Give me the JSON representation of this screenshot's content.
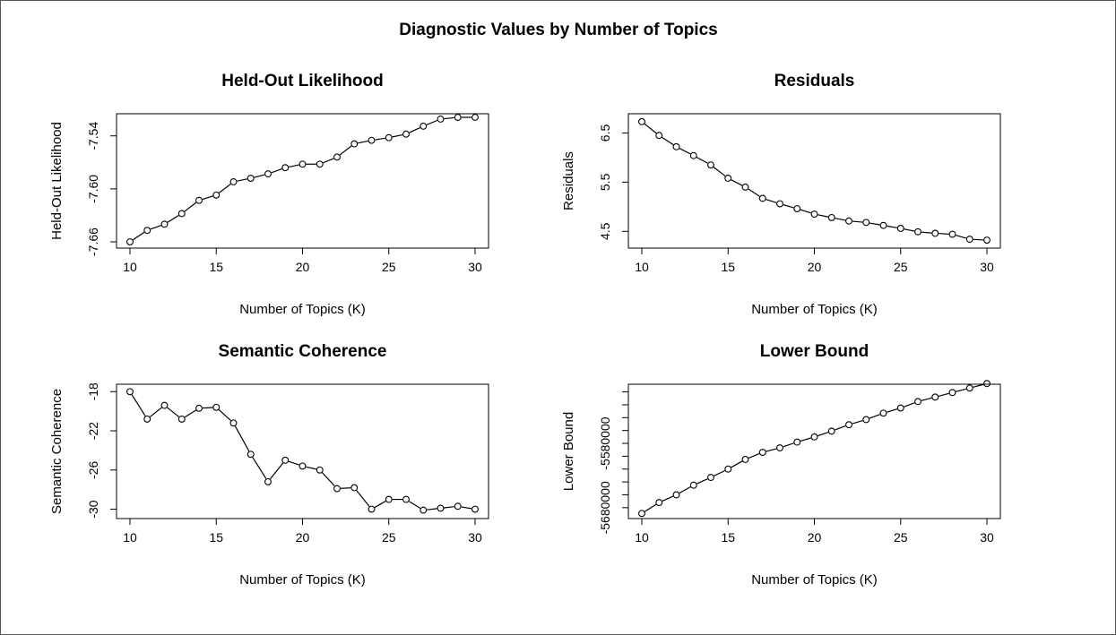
{
  "figure": {
    "title": "Diagnostic Values by Number of Topics"
  },
  "chart_data": [
    {
      "type": "line",
      "title": "Held-Out Likelihood",
      "xlabel": "Number of Topics (K)",
      "ylabel": "Held-Out Likelihood",
      "xlim": [
        10,
        30
      ],
      "ylim": [
        -7.662,
        -7.52
      ],
      "xticks": [
        10,
        15,
        20,
        25,
        30
      ],
      "yticks": [
        -7.66,
        -7.6,
        -7.54
      ],
      "ytick_labels": [
        "-7.66",
        "-7.60",
        "-7.54"
      ],
      "x": [
        10,
        11,
        12,
        13,
        14,
        15,
        16,
        17,
        18,
        19,
        20,
        21,
        22,
        23,
        24,
        25,
        26,
        27,
        28,
        29,
        30
      ],
      "values": [
        -7.66,
        -7.647,
        -7.64,
        -7.628,
        -7.613,
        -7.607,
        -7.592,
        -7.588,
        -7.583,
        -7.576,
        -7.572,
        -7.572,
        -7.564,
        -7.549,
        -7.545,
        -7.542,
        -7.538,
        -7.529,
        -7.521,
        -7.519,
        -7.519
      ]
    },
    {
      "type": "line",
      "title": "Residuals",
      "xlabel": "Number of Topics (K)",
      "ylabel": "Residuals",
      "xlim": [
        10,
        30
      ],
      "ylim": [
        4.25,
        6.8
      ],
      "xticks": [
        10,
        15,
        20,
        25,
        30
      ],
      "yticks": [
        4.5,
        5.5,
        6.5
      ],
      "ytick_labels": [
        "4.5",
        "5.5",
        "6.5"
      ],
      "x": [
        10,
        11,
        12,
        13,
        14,
        15,
        16,
        17,
        18,
        19,
        20,
        21,
        22,
        23,
        24,
        25,
        26,
        27,
        28,
        29,
        30
      ],
      "values": [
        6.73,
        6.45,
        6.22,
        6.04,
        5.85,
        5.58,
        5.4,
        5.17,
        5.06,
        4.96,
        4.85,
        4.78,
        4.71,
        4.68,
        4.62,
        4.56,
        4.49,
        4.46,
        4.44,
        4.34,
        4.32
      ]
    },
    {
      "type": "line",
      "title": "Semantic Coherence",
      "xlabel": "Number of Topics (K)",
      "ylabel": "Semantic Coherence",
      "xlim": [
        10,
        30
      ],
      "ylim": [
        -30.5,
        -17.7
      ],
      "xticks": [
        10,
        15,
        20,
        25,
        30
      ],
      "yticks": [
        -30,
        -26,
        -22,
        -18
      ],
      "ytick_labels": [
        "-30",
        "-26",
        "-22",
        "-18"
      ],
      "x": [
        10,
        11,
        12,
        13,
        14,
        15,
        16,
        17,
        18,
        19,
        20,
        21,
        22,
        23,
        24,
        25,
        26,
        27,
        28,
        29,
        30
      ],
      "values": [
        -18.0,
        -20.8,
        -19.4,
        -20.8,
        -19.7,
        -19.6,
        -21.2,
        -24.4,
        -27.2,
        -25.0,
        -25.6,
        -26.0,
        -27.9,
        -27.8,
        -30.0,
        -29.0,
        -29.0,
        -30.1,
        -29.9,
        -29.7,
        -30.0
      ]
    },
    {
      "type": "line",
      "title": "Lower Bound",
      "xlabel": "Number of Topics (K)",
      "ylabel": "Lower Bound",
      "xlim": [
        10,
        30
      ],
      "ylim": [
        -5690000,
        -5495000
      ],
      "xticks": [
        10,
        15,
        20,
        25,
        30
      ],
      "yticks": [
        -5680000,
        -5580000
      ],
      "ytick_labels": [
        "-5680000",
        "-5580000"
      ],
      "minor_yticks": [
        -5680000,
        -5660000,
        -5640000,
        -5620000,
        -5600000,
        -5580000,
        -5560000,
        -5540000,
        -5520000,
        -5500000
      ],
      "x": [
        10,
        11,
        12,
        13,
        14,
        15,
        16,
        17,
        18,
        19,
        20,
        21,
        22,
        23,
        24,
        25,
        26,
        27,
        28,
        29,
        30
      ],
      "values": [
        -5689000,
        -5672000,
        -5660000,
        -5645000,
        -5633000,
        -5620000,
        -5605000,
        -5594000,
        -5587000,
        -5578000,
        -5570000,
        -5561000,
        -5551000,
        -5543000,
        -5533000,
        -5525000,
        -5515000,
        -5508000,
        -5501000,
        -5494000,
        -5487000
      ]
    }
  ]
}
